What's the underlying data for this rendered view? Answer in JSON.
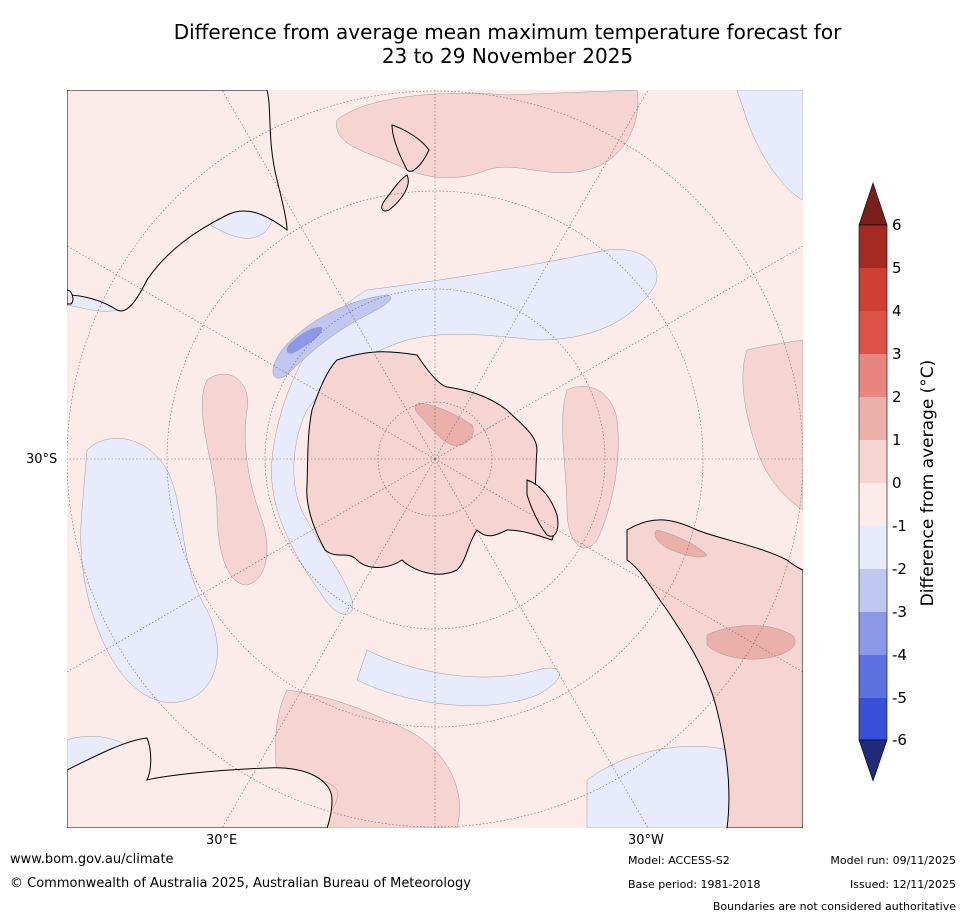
{
  "title": {
    "line1": "Difference from average mean maximum temperature forecast for",
    "line2": "23 to 29 November 2025"
  },
  "map": {
    "lat_label": "30°S",
    "lon_labels": [
      "30°E",
      "30°W"
    ]
  },
  "colorbar": {
    "title": "Difference from average (°C)",
    "ticks": [
      "6",
      "5",
      "4",
      "3",
      "2",
      "1",
      "0",
      "-1",
      "-2",
      "-3",
      "-4",
      "-5",
      "-6"
    ],
    "colors": {
      "over": "#7a1f1a",
      "bands": [
        "#a52a22",
        "#cf3e33",
        "#de5147",
        "#e8877f",
        "#ecb0aa",
        "#f5d4d2",
        "#fbecea",
        "#e8ebfb",
        "#c0c7f0",
        "#8b99e8",
        "#5f71e0",
        "#3a4fd9",
        "#2b3fb0"
      ],
      "under": "#1f2b7a"
    }
  },
  "palette": {
    "ocean_base": "#fbecea",
    "land_base": "#f5d4d2",
    "warm_1": "#f5d4d2",
    "warm_2": "#ecb0aa",
    "cool_1": "#e8ebfb",
    "cool_2": "#c0c7f0",
    "cool_3": "#8b99e8"
  },
  "footer": {
    "website": "www.bom.gov.au/climate",
    "copyright": "© Commonwealth of Australia 2025, Australian Bureau of Meteorology",
    "model": "Model: ACCESS-S2",
    "base_period": "Base period: 1981-2018",
    "model_run": "Model run: 09/11/2025",
    "issued": "Issued: 12/11/2025",
    "disclaimer": "Boundaries are not considered authoritative"
  }
}
